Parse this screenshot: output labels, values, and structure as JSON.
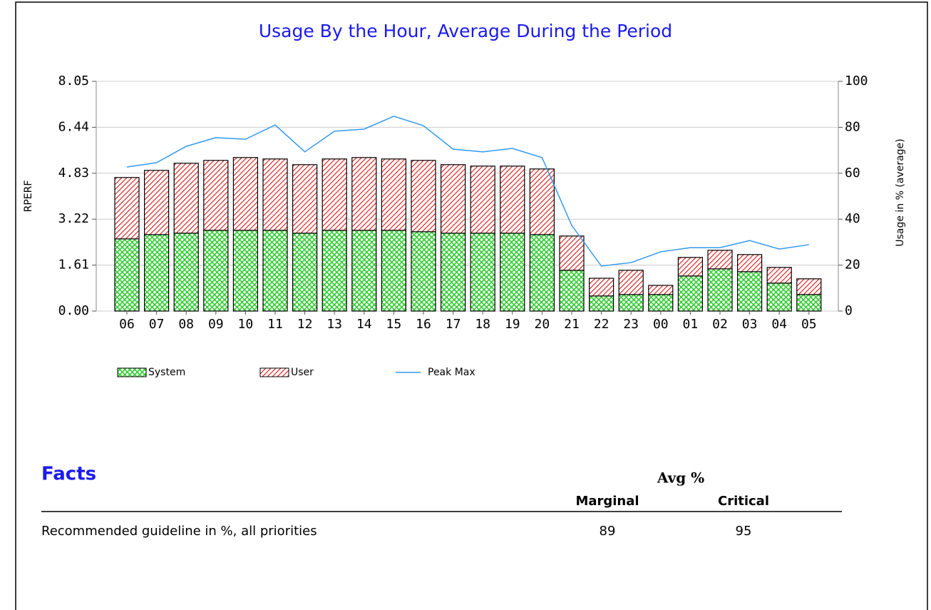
{
  "chart_data": {
    "type": "bar_line",
    "title": "Usage By the Hour, Average During the Period",
    "ylabel": "RPERF",
    "y2label": "Usage in % (average)",
    "categories": [
      "06",
      "07",
      "08",
      "09",
      "10",
      "11",
      "12",
      "13",
      "14",
      "15",
      "16",
      "17",
      "18",
      "19",
      "20",
      "21",
      "22",
      "23",
      "00",
      "01",
      "02",
      "03",
      "04",
      "05"
    ],
    "series": [
      {
        "name": "System",
        "color": "#33cc33",
        "stacked": true,
        "values": [
          2.53,
          2.68,
          2.73,
          2.83,
          2.83,
          2.83,
          2.73,
          2.83,
          2.83,
          2.83,
          2.78,
          2.73,
          2.73,
          2.73,
          2.68,
          1.43,
          0.53,
          0.58,
          0.58,
          1.23,
          1.48,
          1.38,
          0.98,
          0.58
        ]
      },
      {
        "name": "User",
        "color": "#e03030",
        "stacked": true,
        "values": [
          2.15,
          2.25,
          2.45,
          2.45,
          2.55,
          2.5,
          2.4,
          2.5,
          2.55,
          2.5,
          2.5,
          2.4,
          2.35,
          2.35,
          2.3,
          1.2,
          0.62,
          0.85,
          0.32,
          0.65,
          0.65,
          0.6,
          0.55,
          0.55
        ]
      },
      {
        "name": "Peak Max",
        "color": "#3399ee",
        "axis": "y2",
        "values": [
          62.7,
          64.6,
          71.7,
          75.5,
          74.8,
          81,
          69.3,
          78.3,
          79.2,
          84.8,
          80.7,
          70.5,
          69.3,
          70.8,
          66.8,
          37.3,
          19.6,
          21.1,
          25.8,
          27.6,
          27.6,
          30.7,
          27,
          28.9
        ]
      }
    ],
    "ylim": [
      0,
      8.05
    ],
    "yticks": [
      {
        "value": 0,
        "label": "0.00"
      },
      1.61,
      3.22,
      4.83,
      6.44,
      8.05
    ],
    "y2lim": [
      0,
      100
    ],
    "y2ticks": [
      0,
      20,
      40,
      60,
      80,
      100
    ],
    "grid": true,
    "legend": "bottom"
  },
  "facts": {
    "title": "Facts",
    "group_header": "Avg %",
    "columns": [
      "Marginal",
      "Critical"
    ],
    "rows": [
      [
        "Recommended guideline in %, all priorities",
        "89",
        "95"
      ]
    ]
  }
}
